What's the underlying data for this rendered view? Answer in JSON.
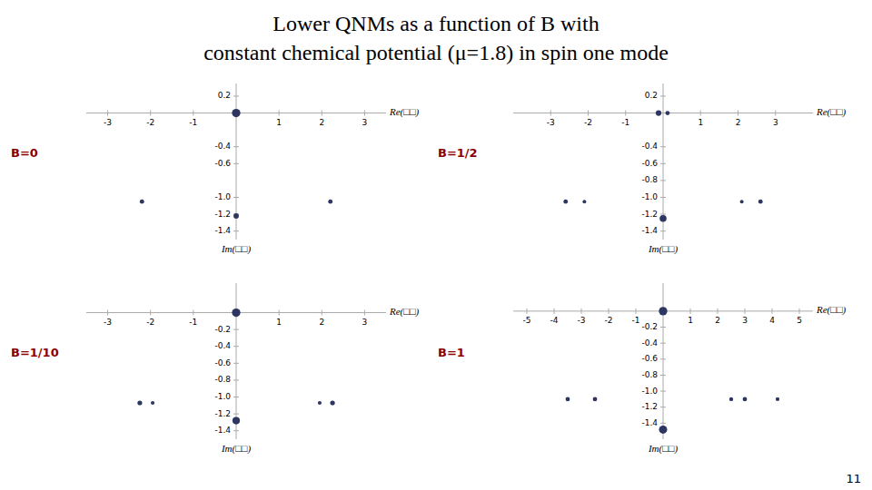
{
  "title": "Lower QNMs as a function of B with",
  "subtitle": "constant chemical potential (μ=1.8) in spin one mode",
  "annotations": [
    "11"
  ],
  "chart_data": [
    {
      "type": "scatter",
      "title": "B=0",
      "x_label": "Re(□□)",
      "y_label": "Im(□□)",
      "color": "#2d3561",
      "xlim": [
        -3.5,
        3.5
      ],
      "ylim": [
        -1.5,
        0.35
      ],
      "xticks": [
        -3,
        -2,
        -1,
        1,
        2,
        3
      ],
      "yticks": [
        0.2,
        -0.4,
        -0.6,
        {
          "value": -1.0,
          "label": "-1.0"
        },
        -1.2,
        -1.4
      ],
      "series": [
        {
          "x": [
            -2.2,
            0.0,
            2.2
          ],
          "values": [
            -1.05,
            -1.22,
            -1.05
          ],
          "sizes": [
            12,
            18,
            12
          ]
        },
        {
          "x": [
            0.0
          ],
          "values": [
            0.0
          ],
          "sizes": [
            45
          ]
        }
      ]
    },
    {
      "type": "scatter",
      "title": "B=1/2",
      "x_label": "Re(□□)",
      "y_label": "Im(□□)",
      "color": "#2d3561",
      "xlim": [
        -4.0,
        4.0
      ],
      "ylim": [
        -1.5,
        0.35
      ],
      "xticks": [
        -3,
        -2,
        -1,
        1,
        2,
        3
      ],
      "yticks": [
        0.2,
        -0.4,
        -0.6,
        -0.8,
        {
          "value": -1.0,
          "label": "-1.0"
        },
        -1.2,
        -1.4
      ],
      "series": [
        {
          "x": [
            -2.6,
            -2.1,
            -0.12,
            0.12,
            0.0,
            2.1,
            2.6
          ],
          "values": [
            -1.05,
            -1.05,
            0.0,
            0.0,
            -1.25,
            -1.05,
            -1.05
          ],
          "sizes": [
            12,
            8,
            20,
            12,
            30,
            8,
            12
          ]
        }
      ]
    },
    {
      "type": "scatter",
      "title": "B=1/10",
      "x_label": "Re(□□)",
      "y_label": "Im(□□)",
      "color": "#2d3561",
      "xlim": [
        -3.5,
        3.5
      ],
      "ylim": [
        -1.5,
        0.35
      ],
      "xticks": [
        -3,
        -2,
        -1,
        1,
        2,
        3
      ],
      "yticks": [
        -0.2,
        -0.4,
        -0.6,
        -0.8,
        {
          "value": -1.0,
          "label": "-1.0"
        },
        -1.2,
        -1.4
      ],
      "series": [
        {
          "x": [
            -2.25,
            -1.95,
            0.0,
            1.95,
            2.25
          ],
          "values": [
            -1.07,
            -1.07,
            -1.28,
            -1.07,
            -1.07
          ],
          "sizes": [
            14,
            9,
            35,
            9,
            14
          ]
        },
        {
          "x": [
            0.0
          ],
          "values": [
            0.0
          ],
          "sizes": [
            45
          ]
        }
      ]
    },
    {
      "type": "scatter",
      "title": "B=1",
      "x_label": "Re(□□)",
      "y_label": "Im(□□)",
      "color": "#2d3561",
      "xlim": [
        -5.5,
        5.5
      ],
      "ylim": [
        -1.6,
        0.35
      ],
      "xticks": [
        -5,
        -4,
        -3,
        -2,
        -1,
        1,
        2,
        3,
        4,
        5
      ],
      "yticks": [
        -0.2,
        -0.4,
        -0.6,
        -0.8,
        {
          "value": -1.0,
          "label": "-1.0"
        },
        -1.2,
        -1.4
      ],
      "series": [
        {
          "x": [
            -3.5,
            -2.5,
            0.0,
            2.5,
            3.0,
            4.2
          ],
          "values": [
            -1.1,
            -1.1,
            -1.48,
            -1.1,
            -1.1,
            -1.1
          ],
          "sizes": [
            12,
            12,
            42,
            10,
            12,
            9
          ]
        },
        {
          "x": [
            0.0
          ],
          "values": [
            0.0
          ],
          "sizes": [
            45
          ]
        }
      ]
    }
  ]
}
